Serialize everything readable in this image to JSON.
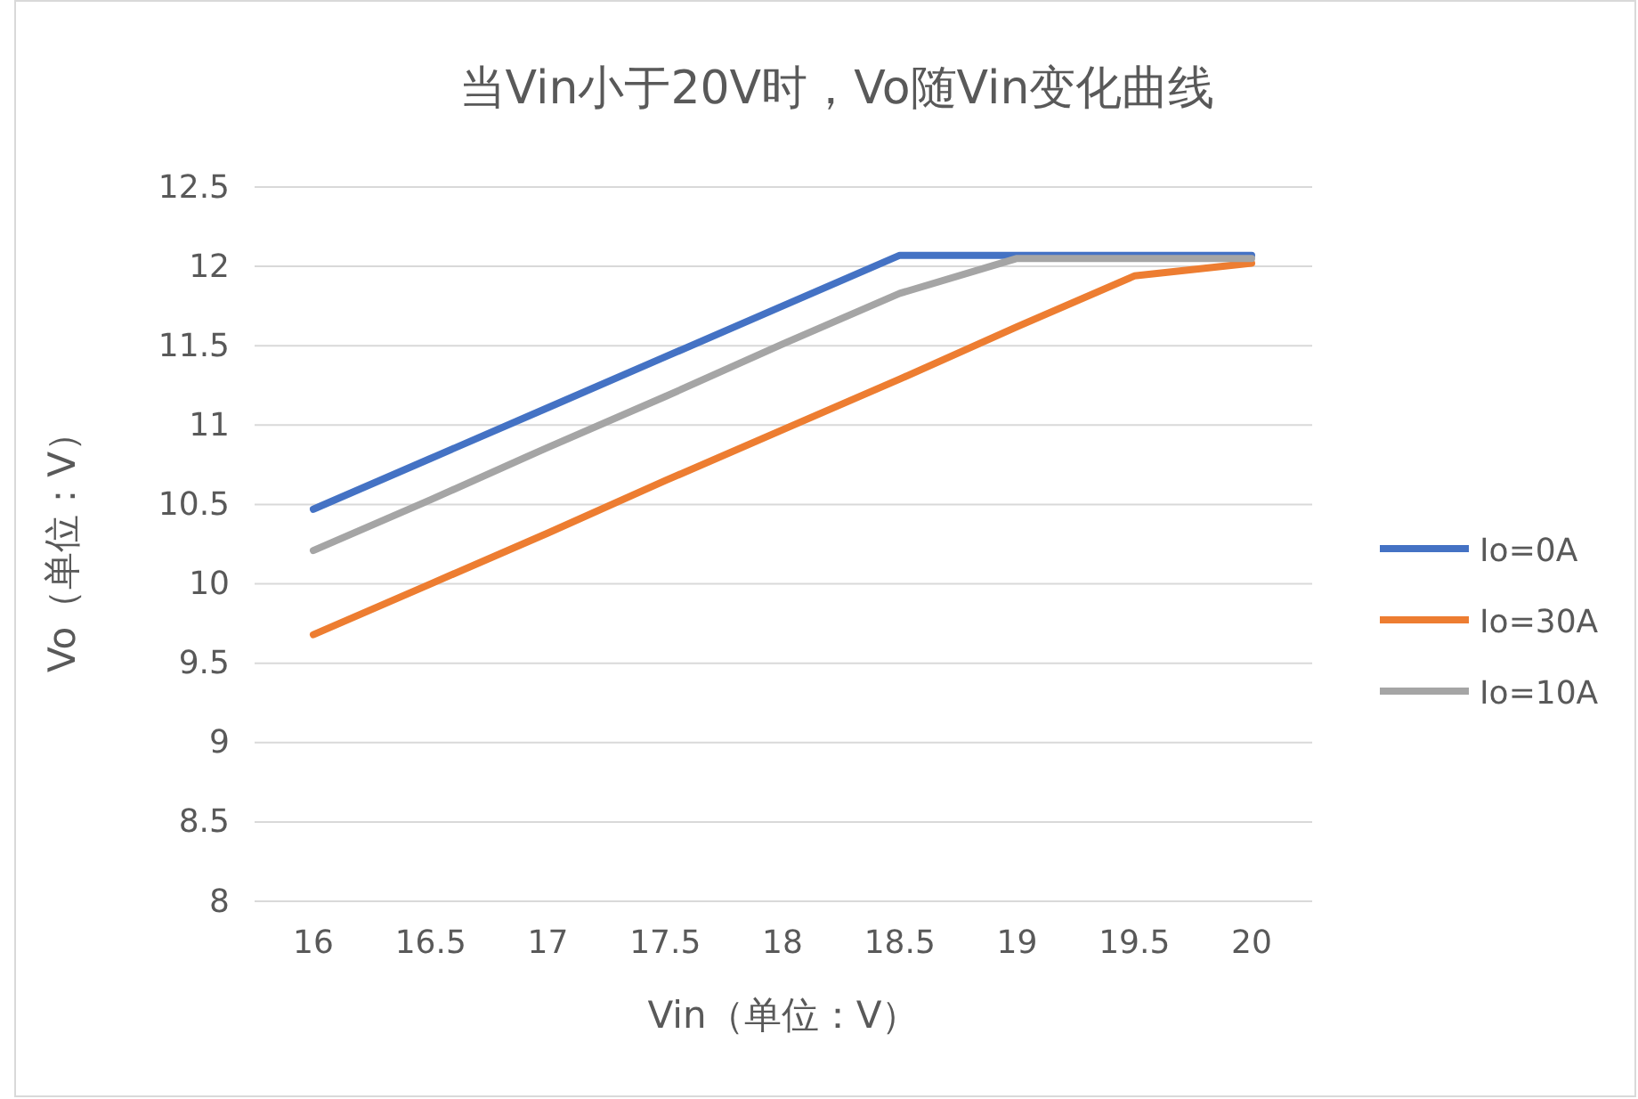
{
  "chart_data": {
    "type": "line",
    "title": "当Vin小于20V时，Vo随Vin变化曲线",
    "xlabel": "Vin（单位：V）",
    "ylabel": "Vo（单位：V）",
    "categories": [
      "16",
      "16.5",
      "17",
      "17.5",
      "18",
      "18.5",
      "19",
      "19.5",
      "20"
    ],
    "series": [
      {
        "name": "Io=0A",
        "color": "#4472c4",
        "values": [
          10.47,
          10.79,
          11.11,
          11.43,
          11.75,
          12.07,
          12.07,
          12.07,
          12.07
        ]
      },
      {
        "name": "Io=30A",
        "color": "#ed7d31",
        "values": [
          9.68,
          10.0,
          10.32,
          10.65,
          10.97,
          11.29,
          11.62,
          11.94,
          12.02
        ]
      },
      {
        "name": "Io=10A",
        "color": "#a5a5a5",
        "values": [
          10.21,
          10.53,
          10.86,
          11.18,
          11.51,
          11.83,
          12.05,
          12.05,
          12.05
        ]
      }
    ],
    "ylim": [
      8,
      12.5
    ],
    "yticks": [
      8,
      8.5,
      9,
      9.5,
      10,
      10.5,
      11,
      11.5,
      12,
      12.5
    ],
    "grid": "y",
    "legend": "right",
    "marker": "none",
    "line_style": "solid"
  }
}
